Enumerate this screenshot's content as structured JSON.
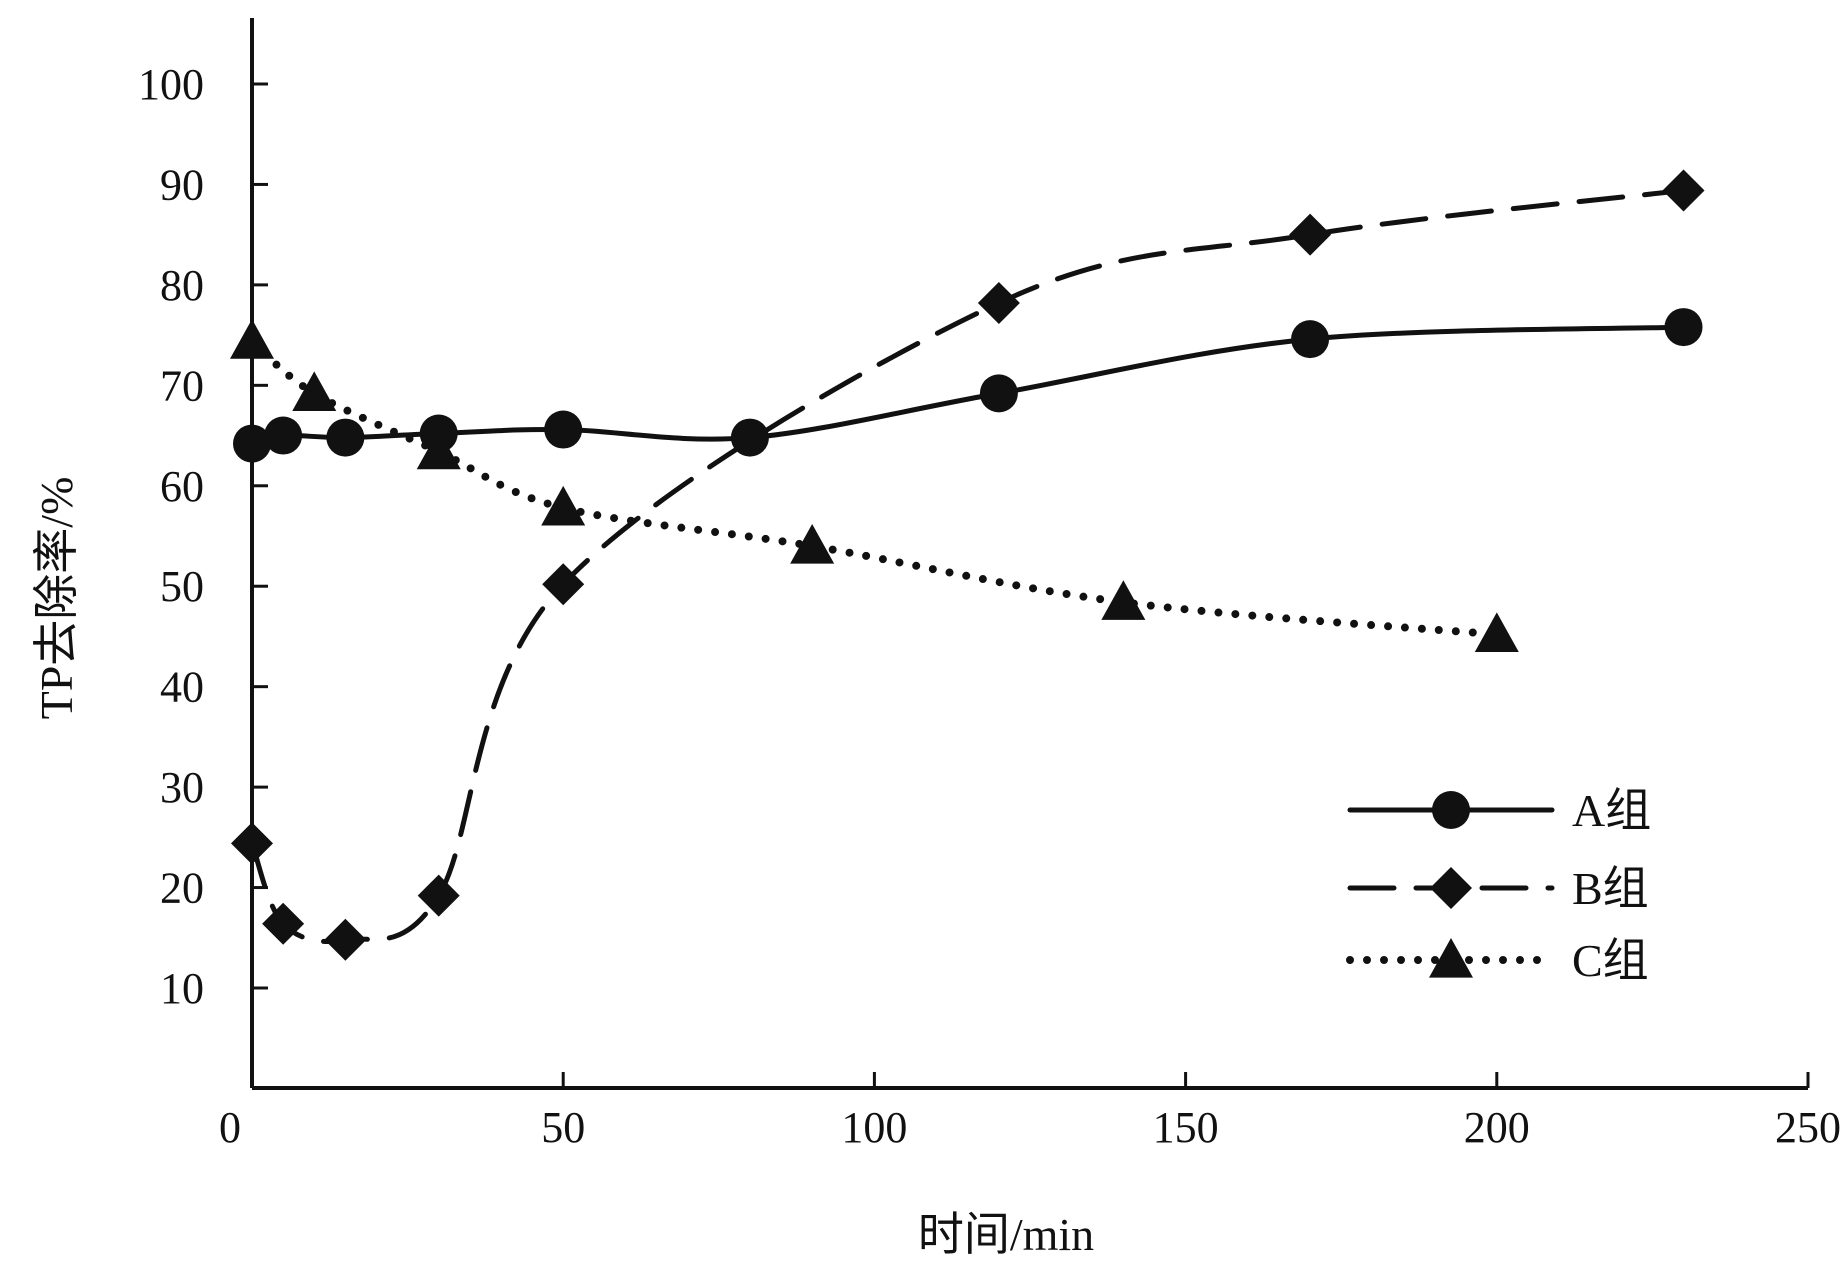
{
  "chart_data": {
    "type": "line",
    "xlabel": "时间/min",
    "ylabel": "TP去除率/%",
    "xlim": [
      0,
      250
    ],
    "ylim": [
      0,
      105
    ],
    "x_ticks": [
      0,
      50,
      100,
      150,
      200,
      250
    ],
    "y_ticks": [
      10,
      20,
      30,
      40,
      50,
      60,
      70,
      80,
      90,
      100
    ],
    "grid": false,
    "legend_position": "bottom-right",
    "series": [
      {
        "name": "A组",
        "line_style": "solid",
        "marker": "circle",
        "x": [
          0,
          5,
          15,
          30,
          50,
          80,
          120,
          170,
          230
        ],
        "y": [
          64.2,
          65.0,
          64.8,
          65.2,
          65.6,
          64.8,
          69.2,
          74.6,
          75.8
        ]
      },
      {
        "name": "B组",
        "line_style": "dashed",
        "marker": "diamond",
        "x": [
          0,
          5,
          15,
          30,
          50,
          120,
          170,
          230
        ],
        "y": [
          24.4,
          16.4,
          14.8,
          19.2,
          50.2,
          78.2,
          85.0,
          89.4
        ]
      },
      {
        "name": "C组",
        "line_style": "dotted",
        "marker": "triangle",
        "x": [
          0,
          10,
          30,
          50,
          90,
          140,
          200
        ],
        "y": [
          74.4,
          69.2,
          63.4,
          57.8,
          54.0,
          48.4,
          45.2
        ]
      }
    ],
    "colors": {
      "ink": "#111111",
      "background": "#ffffff"
    }
  }
}
